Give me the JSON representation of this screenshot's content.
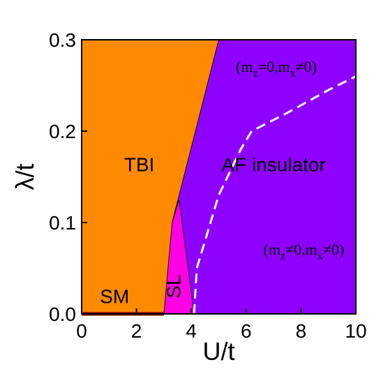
{
  "chart_data": {
    "type": "area",
    "subtype": "phase-diagram",
    "xlabel": "U/t",
    "ylabel": "λ/t",
    "xlim": [
      0,
      10
    ],
    "ylim": [
      0,
      0.3
    ],
    "x_ticks": [
      "0",
      "2",
      "4",
      "6",
      "8",
      "10"
    ],
    "y_ticks": [
      "0.0",
      "0.1",
      "0.2",
      "0.3"
    ],
    "grid": false,
    "regions": [
      {
        "label": "TBI",
        "color": "#ff8a00",
        "polygon": [
          [
            0,
            0
          ],
          [
            3.0,
            0
          ],
          [
            3.3,
            0.1
          ],
          [
            5.0,
            0.3
          ],
          [
            0,
            0.3
          ]
        ],
        "label_at": [
          2.1,
          0.156
        ]
      },
      {
        "label": "AF insulator",
        "color": "#8e00ff",
        "polygon": [
          [
            3.0,
            0
          ],
          [
            10,
            0
          ],
          [
            10,
            0.3
          ],
          [
            5.0,
            0.3
          ],
          [
            3.3,
            0.1
          ],
          [
            3.55,
            0.125
          ],
          [
            4.1,
            0
          ]
        ],
        "label_at": [
          7.0,
          0.156
        ]
      },
      {
        "label": "SL",
        "color": "#ff00e6",
        "polygon": [
          [
            3.0,
            0
          ],
          [
            3.3,
            0.1
          ],
          [
            3.55,
            0.125
          ],
          [
            4.1,
            0
          ]
        ],
        "label_at": [
          3.6,
          0.03
        ],
        "label_rotation": -90
      }
    ],
    "lines": [
      {
        "name": "SM",
        "color": "#7a0000",
        "style": "solid",
        "points": [
          [
            0,
            0
          ],
          [
            3.0,
            0
          ]
        ]
      },
      {
        "name": "",
        "color": "#ffffff",
        "style": "dashed",
        "points": [
          [
            4.1,
            0
          ],
          [
            4.2,
            0.05
          ],
          [
            4.4,
            0.07
          ],
          [
            5.0,
            0.13
          ],
          [
            5.8,
            0.18
          ],
          [
            6.2,
            0.2
          ],
          [
            7.5,
            0.22
          ],
          [
            9.0,
            0.245
          ],
          [
            10,
            0.26
          ]
        ]
      }
    ],
    "annotations": [
      {
        "text": "SM",
        "at": [
          1.2,
          0.012
        ],
        "color": "#000000"
      },
      {
        "text": "(m",
        "sub": "z",
        "rest": "=0,m",
        "sub2": "x",
        "rest2": "≠0)",
        "at": [
          7.1,
          0.265
        ],
        "color": "#000000"
      },
      {
        "text": "(m",
        "sub": "z",
        "rest": "≠0,m",
        "sub2": "x",
        "rest2": "≠0)",
        "at": [
          8.1,
          0.065
        ],
        "color": "#000000"
      }
    ]
  }
}
